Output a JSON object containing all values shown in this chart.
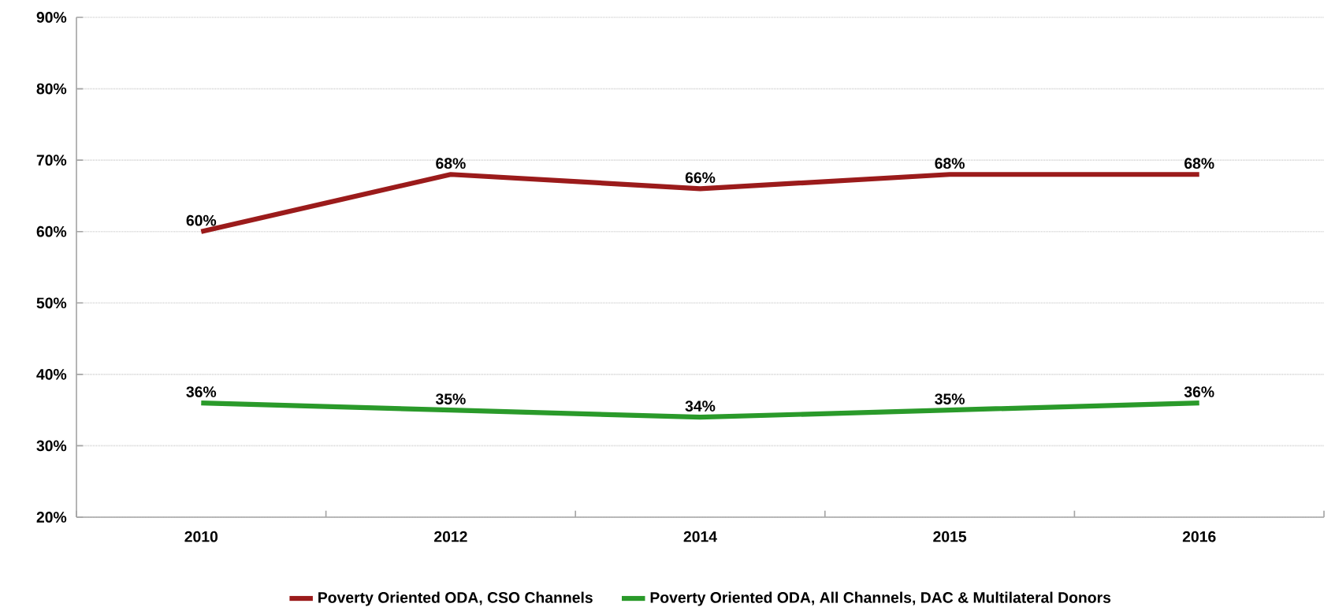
{
  "chart_data": {
    "type": "line",
    "categories": [
      "2010",
      "2012",
      "2014",
      "2015",
      "2016"
    ],
    "series": [
      {
        "name": "Poverty Oriented ODA, CSO Channels",
        "color": "#9b1b1b",
        "values": [
          60,
          68,
          66,
          68,
          68
        ],
        "value_labels": [
          "60%",
          "68%",
          "66%",
          "68%",
          "68%"
        ]
      },
      {
        "name": "Poverty Oriented ODA, All Channels, DAC & Multilateral Donors",
        "color": "#2a9a2a",
        "values": [
          36,
          35,
          34,
          35,
          36
        ],
        "value_labels": [
          "36%",
          "35%",
          "34%",
          "35%",
          "36%"
        ]
      }
    ],
    "ylim": [
      20,
      90
    ],
    "yticks": [
      {
        "value": 20,
        "label": "20%"
      },
      {
        "value": 30,
        "label": "30%"
      },
      {
        "value": 40,
        "label": "40%"
      },
      {
        "value": 50,
        "label": "50%"
      },
      {
        "value": 60,
        "label": "60%"
      },
      {
        "value": 70,
        "label": "70%"
      },
      {
        "value": 80,
        "label": "80%"
      },
      {
        "value": 90,
        "label": "90%"
      }
    ],
    "grid": "y",
    "legend": "bottom",
    "marker": "none",
    "line_style": "solid"
  }
}
